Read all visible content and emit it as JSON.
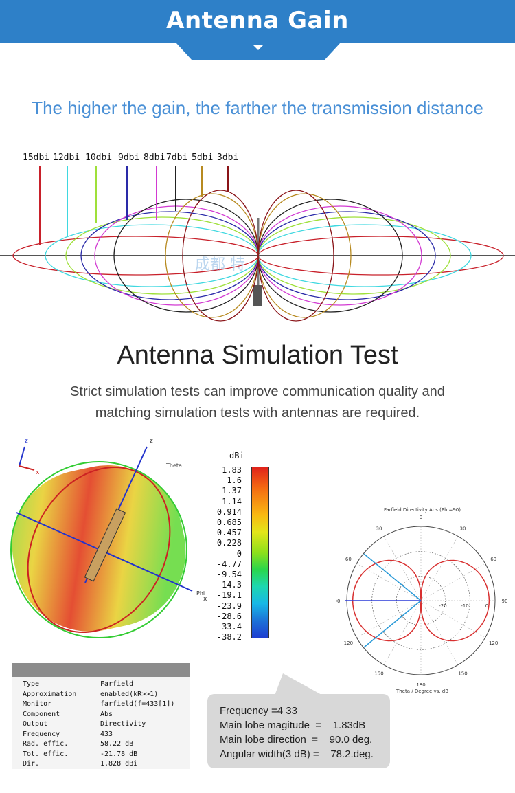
{
  "header": {
    "title": "Antenna Gain"
  },
  "tagline": "The higher the gain, the farther the transmission distance",
  "gain_chart": {
    "labels": [
      "15dbi",
      "12dbi",
      "10dbi",
      "9dbi",
      "8dbi",
      "7dbi",
      "5dbi",
      "3dbi"
    ],
    "colors": [
      "#c8202a",
      "#3fd8e0",
      "#9fe03a",
      "#2a2aa8",
      "#d23ad2",
      "#222222",
      "#b78a20",
      "#8a1418"
    ],
    "watermark": "成都 特"
  },
  "simulation": {
    "title": "Antenna Simulation Test",
    "description": "Strict simulation tests can improve communication quality and matching simulation tests with antennas are required."
  },
  "model_3d": {
    "axis_z": "z",
    "axis_theta": "Theta",
    "axis_x": "x",
    "axis_phi": "Phi"
  },
  "color_scale": {
    "unit": "dBi",
    "ticks": [
      "1.83",
      "1.6",
      "1.37",
      "1.14",
      "0.914",
      "0.685",
      "0.457",
      "0.228",
      "0",
      "-4.77",
      "-9.54",
      "-14.3",
      "-19.1",
      "-23.9",
      "-28.6",
      "-33.4",
      "-38.2"
    ]
  },
  "polar_plot": {
    "title": "Farfield Directivity Abs (Phi=90)",
    "angle_labels": [
      "0",
      "30",
      "30",
      "60",
      "60",
      "90",
      "90",
      "120",
      "120",
      "150",
      "150",
      "180"
    ],
    "radial_labels": [
      "-20",
      "-10",
      "0"
    ],
    "xlabel": "Theta / Degree vs. dB"
  },
  "farfield_table": {
    "rows": [
      {
        "key": "Type",
        "value": "Farfield"
      },
      {
        "key": "Approximation",
        "value": "enabled(kR>>1)"
      },
      {
        "key": "Monitor",
        "value": "farfield(f=433[1])"
      },
      {
        "key": "Component",
        "value": "Abs"
      },
      {
        "key": "Output",
        "value": "Directivity"
      },
      {
        "key": "Frequency",
        "value": "433"
      },
      {
        "key": "Rad. effic.",
        "value": "58.22 dB"
      },
      {
        "key": "Tot. effic.",
        "value": "-21.78 dB"
      },
      {
        "key": "Dir.",
        "value": "1.828 dBi"
      }
    ]
  },
  "callout": {
    "lines": [
      "Frequency =4 33",
      "Main lobe magitude  =    1.83dB",
      "Main lobe direction  =    90.0 deg.",
      "Angular width(3 dB) =    78.2.deg."
    ]
  }
}
